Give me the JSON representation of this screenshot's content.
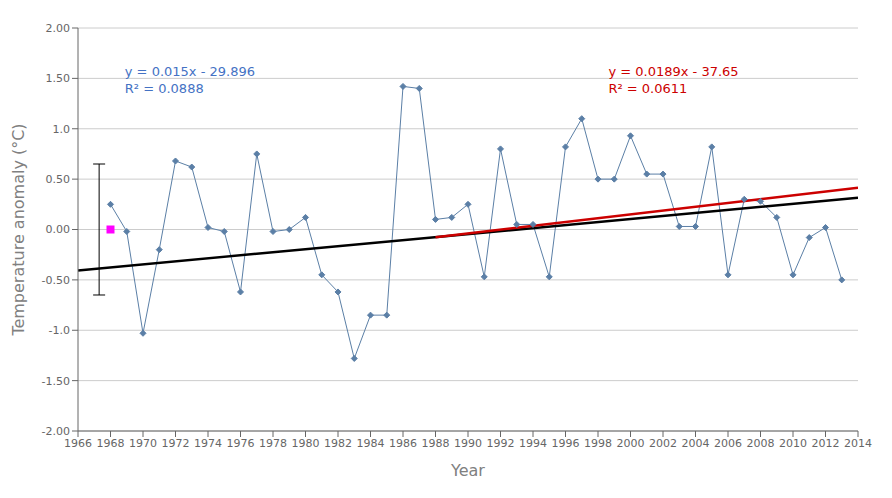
{
  "chart_data": {
    "type": "line",
    "xlabel": "Year",
    "ylabel": "Temperature anomaly (°C)",
    "xlim": [
      1966,
      2014
    ],
    "ylim": [
      -2.0,
      2.0
    ],
    "xticks": [
      1966,
      1968,
      1970,
      1972,
      1974,
      1976,
      1978,
      1980,
      1982,
      1984,
      1986,
      1988,
      1990,
      1992,
      1994,
      1996,
      1998,
      2000,
      2002,
      2004,
      2006,
      2008,
      2010,
      2012,
      2014
    ],
    "yticks": [
      {
        "value": -2.0,
        "label": "-2.00"
      },
      {
        "value": -1.5,
        "label": "-1.50"
      },
      {
        "value": -1.0,
        "label": "-1.0"
      },
      {
        "value": -0.5,
        "label": "-0.50"
      },
      {
        "value": 0.0,
        "label": "0.00"
      },
      {
        "value": 0.5,
        "label": "0.50"
      },
      {
        "value": 1.0,
        "label": "1.0"
      },
      {
        "value": 1.5,
        "label": "1.50"
      },
      {
        "value": 2.0,
        "label": "2.00"
      }
    ],
    "grid": "y",
    "series": [
      {
        "type": "line",
        "x": [
          1968,
          1969,
          1970,
          1971,
          1972,
          1973,
          1974,
          1975,
          1976,
          1977,
          1978,
          1979,
          1980,
          1981,
          1982,
          1983,
          1984,
          1985,
          1986,
          1987,
          1988,
          1989,
          1990,
          1991,
          1992,
          1993,
          1994,
          1995,
          1996,
          1997,
          1998,
          1999,
          2000,
          2001,
          2002,
          2003,
          2004,
          2005,
          2006,
          2007,
          2008,
          2009,
          2010,
          2011,
          2012,
          2013
        ],
        "values": [
          0.25,
          -0.02,
          -1.03,
          -0.2,
          0.68,
          0.62,
          0.02,
          -0.02,
          -0.62,
          0.75,
          -0.02,
          0.0,
          0.12,
          -0.45,
          -0.62,
          -1.28,
          -0.85,
          -0.85,
          1.42,
          1.4,
          0.1,
          0.12,
          0.25,
          -0.47,
          0.8,
          0.05,
          0.05,
          -0.47,
          0.82,
          1.1,
          0.5,
          0.5,
          0.93,
          0.55,
          0.55,
          0.03,
          0.03,
          0.82,
          -0.45,
          0.3,
          0.28,
          0.12,
          -0.45,
          -0.08,
          0.02,
          -0.5
        ],
        "color": "#5b7fa6",
        "marker": "diamond"
      },
      {
        "type": "scatter",
        "x": [
          1968
        ],
        "values": [
          0.0
        ],
        "color": "#ff00ff",
        "marker": "square"
      },
      {
        "type": "errorbar",
        "x": [
          1967.3
        ],
        "values": [
          0.0
        ],
        "error": [
          0.65
        ],
        "color": "#000000"
      },
      {
        "type": "line",
        "x": [
          1966,
          2014
        ],
        "values": [
          -0.406,
          0.314
        ],
        "color": "#000000"
      },
      {
        "type": "line",
        "x": [
          1988,
          2014
        ],
        "values": [
          -0.0768,
          0.4146
        ],
        "color": "#cc0000"
      }
    ],
    "annotations": [
      {
        "text": "y = 0.015x - 29.896\nR² = 0.0888",
        "color": "#4472c4"
      },
      {
        "text": "y = 0.0189x - 37.65\nR² = 0.0611",
        "color": "#cc0000"
      }
    ]
  }
}
